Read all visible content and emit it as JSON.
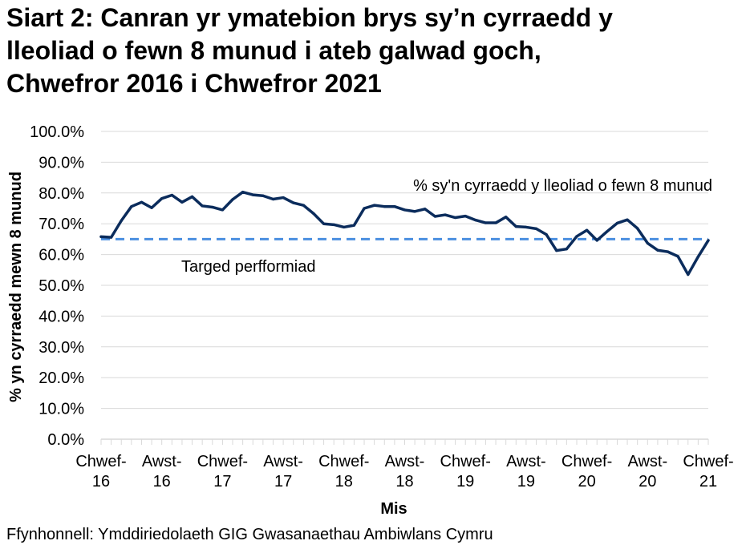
{
  "title_lines": [
    "Siart 2: Canran yr ymatebion brys sy’n cyrraedd y",
    "lleoliad o fewn 8 munud i ateb galwad goch,",
    "Chwefror 2016 i Chwefror 2021"
  ],
  "source": "Ffynhonnell: Ymddiriedolaeth GIG Gwasanaethau Ambiwlans Cymru",
  "chart_data": {
    "type": "line",
    "title": "Siart 2: Canran yr ymatebion brys sy’n cyrraedd y lleoliad o fewn 8 munud i ateb galwad goch, Chwefror 2016 i Chwefror 2021",
    "xlabel": "Mis",
    "ylabel": "% yn cyrraedd mewn 8 munud",
    "ylim": [
      0,
      100
    ],
    "yticks": [
      "0.0%",
      "10.0%",
      "20.0%",
      "30.0%",
      "40.0%",
      "50.0%",
      "60.0%",
      "70.0%",
      "80.0%",
      "90.0%",
      "100.0%"
    ],
    "xtick_labels": [
      [
        "Chwef-",
        "16"
      ],
      [
        "Awst-",
        "16"
      ],
      [
        "Chwef-",
        "17"
      ],
      [
        "Awst-",
        "17"
      ],
      [
        "Chwef-",
        "18"
      ],
      [
        "Awst-",
        "18"
      ],
      [
        "Chwef-",
        "19"
      ],
      [
        "Awst-",
        "19"
      ],
      [
        "Chwef-",
        "20"
      ],
      [
        "Awst-",
        "20"
      ],
      [
        "Chwef-",
        "21"
      ]
    ],
    "grid": true,
    "series": [
      {
        "name": "% sy'n cyrraedd y lleoliad o fewn 8 munud",
        "color": "#0b2c5c",
        "style": "solid",
        "values": [
          65.8,
          65.6,
          71.0,
          75.6,
          77.0,
          75.2,
          78.2,
          79.3,
          77.0,
          78.8,
          75.8,
          75.4,
          74.5,
          77.9,
          80.3,
          79.4,
          79.1,
          78.0,
          78.5,
          76.8,
          76.0,
          73.3,
          70.0,
          69.7,
          68.9,
          69.5,
          75.0,
          76.0,
          75.6,
          75.6,
          74.5,
          74.0,
          74.8,
          72.4,
          72.9,
          72.0,
          72.5,
          71.2,
          70.3,
          70.3,
          72.2,
          69.1,
          68.9,
          68.4,
          66.5,
          61.3,
          61.8,
          65.9,
          67.9,
          64.6,
          67.5,
          70.2,
          71.3,
          68.5,
          63.7,
          61.4,
          60.9,
          59.4,
          53.5,
          59.3,
          64.6
        ]
      },
      {
        "name": "Targed perfformiad",
        "color": "#4a8fe0",
        "style": "dashed",
        "value": 65
      }
    ]
  }
}
